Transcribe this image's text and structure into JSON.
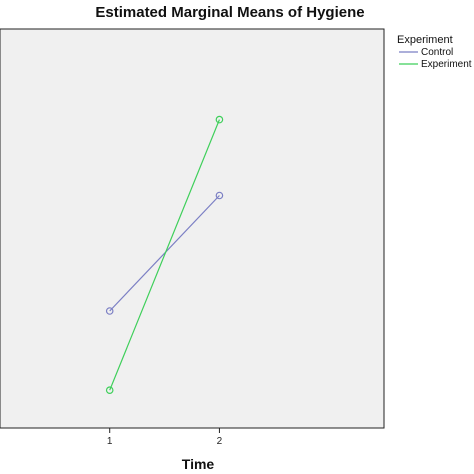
{
  "chart_data": {
    "type": "line",
    "title": "Estimated Marginal Means of Hygiene",
    "xlabel": "Time",
    "ylabel": "",
    "categories": [
      "1",
      "2"
    ],
    "x": [
      1,
      2
    ],
    "xlim": [
      0.0,
      3.5
    ],
    "ylim": [
      0,
      100
    ],
    "grid": false,
    "legend": {
      "title": "Experiment",
      "placement": "right"
    },
    "series": [
      {
        "name": "Control",
        "values": [
          30,
          65
        ],
        "color": "#7b7fc4"
      },
      {
        "name": "Experiment",
        "values": [
          6,
          88
        ],
        "color": "#3ecf5a"
      }
    ],
    "plot_background": "#f0f0f0"
  }
}
